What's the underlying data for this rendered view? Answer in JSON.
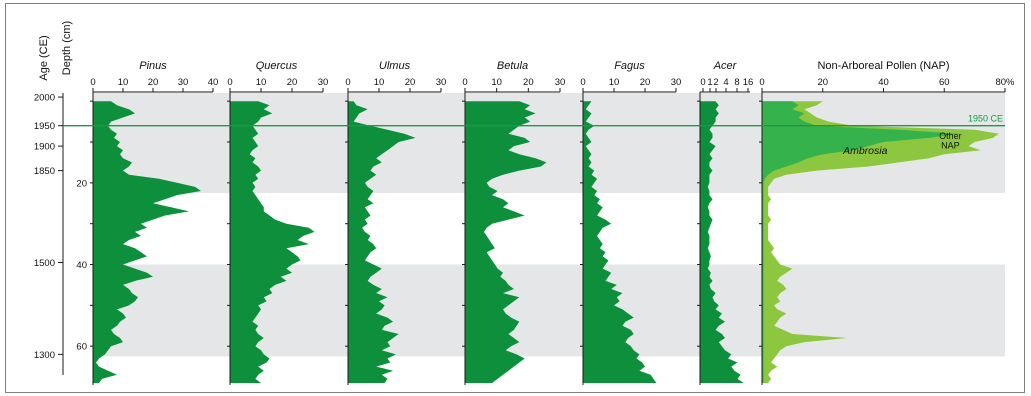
{
  "colors": {
    "taxon_fill": "#0e8f3c",
    "ambrosia_fill": "#36b24c",
    "other_nap_fill": "#8dc63f",
    "band_fill": "#e5e6e7",
    "line_1950": "#1a9a48",
    "axis": "#1a1a1a"
  },
  "chart_data": {
    "type": "area",
    "age_axis_label": "Age (CE)",
    "depth_axis_label": "Depth (cm)",
    "depth_range": [
      -2,
      69.5
    ],
    "age_ticks": [
      {
        "label": "2000",
        "depth": -1
      },
      {
        "label": "1950",
        "depth": 6
      },
      {
        "label": "1900",
        "depth": 11
      },
      {
        "label": "1850",
        "depth": 17
      },
      {
        "label": "1500",
        "depth": 39.5
      },
      {
        "label": "1300",
        "depth": 62
      }
    ],
    "depth_ticks": [
      20,
      40,
      60
    ],
    "shaded_depth_bands": [
      [
        -2,
        22.5
      ],
      [
        40,
        62.5
      ]
    ],
    "reference_line": {
      "label": "1950 CE",
      "depth": 6
    },
    "depths": [
      0,
      1,
      2,
      3,
      4,
      5,
      6,
      7,
      8,
      9,
      10,
      11,
      12,
      13,
      14,
      15,
      16,
      17,
      18,
      19,
      20,
      21,
      22,
      23,
      24,
      25,
      26,
      27,
      28,
      29,
      30,
      31,
      32,
      33,
      34,
      35,
      36,
      37,
      38,
      39,
      40,
      41,
      42,
      43,
      44,
      45,
      46,
      47,
      48,
      49,
      50,
      51,
      52,
      53,
      54,
      55,
      56,
      57,
      58,
      59,
      60,
      61,
      62,
      63,
      64,
      65,
      66,
      67,
      68,
      69
    ],
    "panels": [
      {
        "title": "Pinus",
        "ticks": [
          "0",
          "10",
          "20",
          "30",
          "40"
        ],
        "max": 40,
        "values": [
          6,
          8,
          12,
          14,
          10,
          6,
          5,
          6,
          8,
          7,
          9,
          8,
          10,
          9,
          10,
          13,
          12,
          10,
          12,
          22,
          28,
          34,
          36,
          28,
          24,
          20,
          26,
          32,
          24,
          20,
          16,
          18,
          14,
          16,
          12,
          10,
          14,
          16,
          18,
          14,
          10,
          14,
          18,
          20,
          14,
          10,
          12,
          13,
          15,
          14,
          12,
          8,
          10,
          11,
          9,
          8,
          6,
          7,
          9,
          10,
          6,
          5,
          4,
          2,
          1,
          2,
          5,
          8,
          3,
          2
        ]
      },
      {
        "title": "Quercus",
        "ticks": [
          "0",
          "10",
          "20",
          "30"
        ],
        "max": 33,
        "values": [
          10,
          14,
          12,
          15,
          11,
          10,
          8,
          9,
          10,
          8,
          9,
          10,
          8,
          7,
          9,
          8,
          10,
          11,
          9,
          10,
          8,
          9,
          8,
          9,
          10,
          11,
          12,
          12,
          14,
          16,
          20,
          28,
          30,
          26,
          24,
          28,
          20,
          22,
          24,
          25,
          22,
          20,
          22,
          18,
          20,
          16,
          14,
          15,
          12,
          13,
          10,
          11,
          10,
          9,
          8,
          10,
          9,
          10,
          12,
          10,
          9,
          11,
          12,
          14,
          13,
          10,
          12,
          10,
          9,
          11
        ]
      },
      {
        "title": "Ulmus",
        "ticks": [
          "0",
          "10",
          "20",
          "30"
        ],
        "max": 33,
        "values": [
          2,
          3,
          7,
          4,
          3,
          2,
          8,
          14,
          20,
          24,
          18,
          16,
          14,
          12,
          10,
          12,
          9,
          8,
          10,
          8,
          6,
          7,
          9,
          8,
          7,
          9,
          6,
          7,
          8,
          6,
          7,
          5,
          6,
          8,
          7,
          9,
          10,
          8,
          7,
          6,
          9,
          12,
          10,
          8,
          7,
          9,
          12,
          10,
          14,
          11,
          13,
          12,
          10,
          14,
          16,
          13,
          12,
          18,
          16,
          14,
          15,
          12,
          17,
          14,
          15,
          10,
          16,
          12,
          14,
          13
        ]
      },
      {
        "title": "Betula",
        "ticks": [
          "0",
          "10",
          "20",
          "30"
        ],
        "max": 35,
        "values": [
          20,
          24,
          22,
          26,
          22,
          24,
          20,
          18,
          16,
          22,
          24,
          18,
          16,
          20,
          26,
          30,
          28,
          20,
          14,
          10,
          8,
          9,
          12,
          10,
          14,
          16,
          14,
          18,
          22,
          16,
          10,
          8,
          7,
          8,
          9,
          10,
          11,
          8,
          9,
          10,
          11,
          12,
          14,
          13,
          15,
          16,
          18,
          14,
          20,
          18,
          16,
          14,
          15,
          17,
          20,
          19,
          18,
          16,
          18,
          20,
          17,
          15,
          19,
          22,
          20,
          18,
          16,
          14,
          12,
          10
        ]
      },
      {
        "title": "Fagus",
        "ticks": [
          "0",
          "10",
          "20",
          "30"
        ],
        "max": 33,
        "values": [
          3,
          2,
          1,
          3,
          2,
          1,
          4,
          2,
          1,
          2,
          3,
          1,
          2,
          3,
          2,
          3,
          2,
          4,
          3,
          5,
          4,
          3,
          5,
          4,
          6,
          5,
          7,
          6,
          5,
          8,
          10,
          7,
          6,
          5,
          6,
          7,
          6,
          8,
          7,
          9,
          8,
          7,
          10,
          9,
          8,
          12,
          10,
          14,
          12,
          13,
          11,
          14,
          16,
          18,
          15,
          14,
          17,
          18,
          16,
          15,
          17,
          18,
          20,
          19,
          21,
          22,
          20,
          24,
          25,
          26
        ]
      },
      {
        "title": "Acer",
        "ticks": [
          "0",
          "1",
          "2",
          "4",
          "8",
          "16"
        ],
        "max": 16,
        "values": [
          5,
          6,
          5,
          6,
          5,
          5,
          4,
          3,
          4,
          4,
          3,
          5,
          4,
          3,
          4,
          3,
          3,
          4,
          3,
          3,
          3,
          2.5,
          3,
          3,
          4,
          3,
          2.5,
          3,
          3,
          4,
          3.5,
          3,
          2.5,
          3,
          3,
          3,
          2.5,
          3,
          3.5,
          3,
          3,
          2.5,
          3.5,
          3,
          4,
          3,
          3.5,
          5,
          4,
          4.5,
          6,
          5,
          7,
          6,
          8,
          6,
          5,
          7,
          8,
          6,
          7,
          8,
          10,
          9,
          12,
          10,
          11,
          13,
          12,
          14
        ]
      },
      {
        "title": "Non-Arboreal Pollen (NAP)",
        "ticks": [
          "0",
          "20",
          "40",
          "60",
          "80%"
        ],
        "max": 80,
        "ambrosia_label": "Ambrosia",
        "other_label": "Other NAP",
        "ambrosia_values": [
          10,
          12,
          10,
          14,
          12,
          14,
          18,
          45,
          65,
          55,
          40,
          35,
          30,
          20,
          15,
          12,
          8,
          4,
          2,
          1,
          0.5,
          0.5,
          0.5,
          0.5,
          0.5,
          0.5,
          0.5,
          0.5,
          0.5,
          0.5,
          0.5,
          0.5,
          0.5,
          0.5,
          0.5,
          0.5,
          0.5,
          0.5,
          0.5,
          0.5,
          0.5,
          0.5,
          0.5,
          0.5,
          0.5,
          0.5,
          0.5,
          0.5,
          0.5,
          0.5,
          0.5,
          0.5,
          0.5,
          0.5,
          0.5,
          0.5,
          0.5,
          0.5,
          0.5,
          0.5,
          0.5,
          0.5,
          0.5,
          0.5,
          0.5,
          0.5,
          0.5,
          0.5,
          0.5,
          0.5
        ],
        "total_values": [
          20,
          18,
          14,
          16,
          18,
          22,
          30,
          70,
          78,
          76,
          70,
          68,
          72,
          60,
          55,
          45,
          35,
          18,
          8,
          4,
          3,
          2,
          2,
          2,
          3,
          2,
          2,
          2,
          2,
          3,
          2,
          2,
          2,
          2,
          2,
          3,
          4,
          3,
          4,
          5,
          6,
          10,
          8,
          6,
          5,
          7,
          8,
          6,
          5,
          6,
          4,
          5,
          8,
          6,
          5,
          4,
          7,
          10,
          28,
          14,
          8,
          6,
          5,
          4,
          3,
          5,
          3,
          2,
          3,
          2
        ]
      }
    ]
  }
}
